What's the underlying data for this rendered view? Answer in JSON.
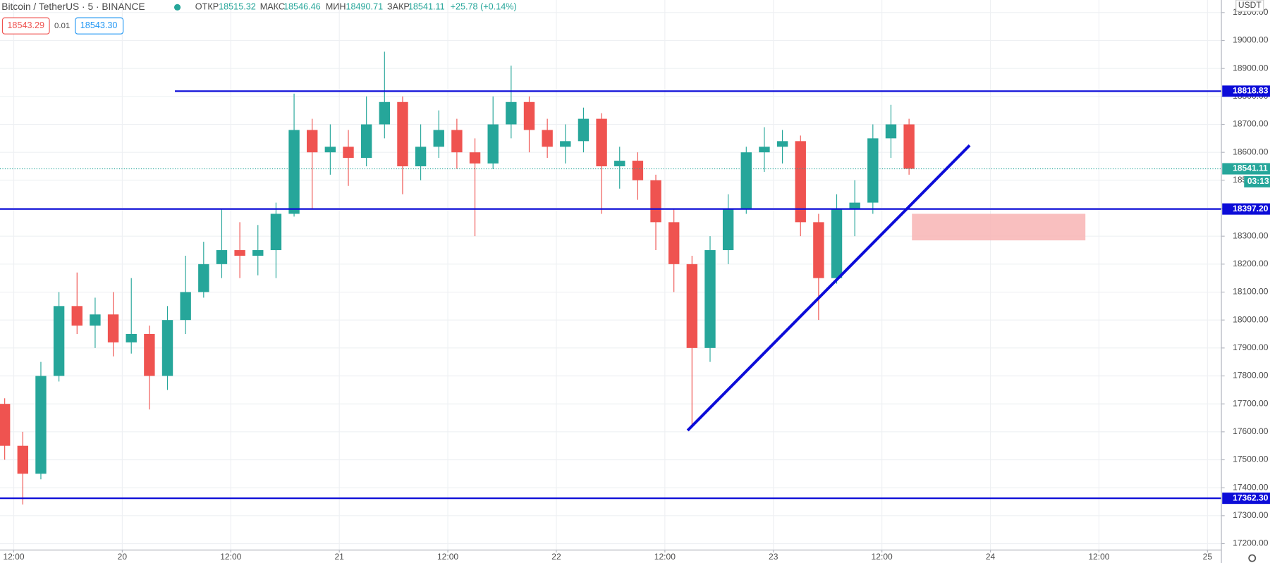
{
  "chart_data": {
    "type": "candlestick",
    "title": "Bitcoin / TetherUS · 5 · BINANCE",
    "header": {
      "open_label": "ОТКР",
      "open": 18515.32,
      "high_label": "МАКС",
      "high": 18546.46,
      "low_label": "МИН",
      "low": 18490.71,
      "close_label": "ЗАКР",
      "close": 18541.11,
      "change": "+25.78 (+0.14%)",
      "sell": "18543.29",
      "spread": "0.01",
      "buy": "18543.30"
    },
    "currency": "USDT",
    "countdown": "03:13",
    "up_color": "#26a69a",
    "down_color": "#ef5350",
    "open": [
      17700,
      17550,
      17450,
      17800,
      18050,
      17980,
      18020,
      17920,
      17950,
      17800,
      18000,
      18100,
      18200,
      18250,
      18230,
      18250,
      18380,
      18680,
      18600,
      18620,
      18580,
      18700,
      18780,
      18550,
      18620,
      18680,
      18600,
      18560,
      18700,
      18780,
      18680,
      18620,
      18640,
      18720,
      18550,
      18570,
      18500,
      18350,
      18200,
      17900,
      18250,
      18400,
      18600,
      18620,
      18640,
      18350,
      18150,
      18400,
      18420,
      18650,
      18700
    ],
    "high": [
      17720,
      17600,
      17850,
      18100,
      18170,
      18080,
      18100,
      18150,
      17980,
      18050,
      18230,
      18280,
      18400,
      18350,
      18340,
      18420,
      18810,
      18720,
      18700,
      18680,
      18800,
      18960,
      18800,
      18700,
      18750,
      18720,
      18650,
      18800,
      18910,
      18800,
      18720,
      18700,
      18760,
      18740,
      18620,
      18600,
      18520,
      18400,
      18230,
      18300,
      18450,
      18620,
      18690,
      18680,
      18660,
      18380,
      18450,
      18500,
      18700,
      18770,
      18720
    ],
    "low": [
      17500,
      17340,
      17430,
      17780,
      17950,
      17900,
      17870,
      17880,
      17680,
      17750,
      17950,
      18080,
      18150,
      18150,
      18160,
      18150,
      18370,
      18400,
      18520,
      18480,
      18550,
      18650,
      18450,
      18500,
      18580,
      18540,
      18300,
      18540,
      18650,
      18600,
      18580,
      18560,
      18600,
      18380,
      18470,
      18430,
      18250,
      18100,
      17620,
      17850,
      18200,
      18380,
      18530,
      18560,
      18300,
      18000,
      18130,
      18300,
      18380,
      18580,
      18520
    ],
    "close": [
      17550,
      17450,
      17800,
      18050,
      17980,
      18020,
      17920,
      17950,
      17800,
      18000,
      18100,
      18200,
      18250,
      18230,
      18250,
      18380,
      18680,
      18600,
      18620,
      18580,
      18700,
      18780,
      18550,
      18620,
      18680,
      18600,
      18560,
      18700,
      18780,
      18680,
      18620,
      18640,
      18720,
      18550,
      18570,
      18500,
      18350,
      18200,
      17900,
      18250,
      18400,
      18600,
      18620,
      18640,
      18350,
      18150,
      18400,
      18420,
      18650,
      18700,
      18541.11
    ],
    "xlim": [
      0.24,
      67.77
    ],
    "ylim": [
      17177,
      19145
    ],
    "xticks": [
      {
        "value": 1,
        "label": "12:00"
      },
      {
        "value": 7,
        "label": "20"
      },
      {
        "value": 13,
        "label": "12:00"
      },
      {
        "value": 19,
        "label": "21"
      },
      {
        "value": 25,
        "label": "12:00"
      },
      {
        "value": 31,
        "label": "22"
      },
      {
        "value": 37,
        "label": "12:00"
      },
      {
        "value": 43,
        "label": "23"
      },
      {
        "value": 49,
        "label": "12:00"
      },
      {
        "value": 55,
        "label": "24"
      },
      {
        "value": 61,
        "label": "12:00"
      },
      {
        "value": 67,
        "label": "25"
      }
    ],
    "yticks": [
      {
        "value": 17200,
        "label": "17200.00"
      },
      {
        "value": 17300,
        "label": "17300.00"
      },
      {
        "value": 17400,
        "label": "17400.00"
      },
      {
        "value": 17500,
        "label": "17500.00"
      },
      {
        "value": 17600,
        "label": "17600.00"
      },
      {
        "value": 17700,
        "label": "17700.00"
      },
      {
        "value": 17800,
        "label": "17800.00"
      },
      {
        "value": 17900,
        "label": "17900.00"
      },
      {
        "value": 18000,
        "label": "18000.00"
      },
      {
        "value": 18100,
        "label": "18100.00"
      },
      {
        "value": 18200,
        "label": "18200.00"
      },
      {
        "value": 18300,
        "label": "18300.00"
      },
      {
        "value": 18400,
        "label": "18400.00"
      },
      {
        "value": 18500,
        "label": "18500.00"
      },
      {
        "value": 18600,
        "label": "18600.00"
      },
      {
        "value": 18700,
        "label": "18700.00"
      },
      {
        "value": 18800,
        "label": "18800.00"
      },
      {
        "value": 18900,
        "label": "18900.00"
      },
      {
        "value": 19000,
        "label": "19000.00"
      },
      {
        "value": 19100,
        "label": "19100.00"
      }
    ],
    "grid": true,
    "levels": [
      {
        "value": 18818.83,
        "label": "18818.83",
        "start": 9.91
      },
      {
        "value": 18397.2,
        "label": "18397.20"
      },
      {
        "value": 17362.3,
        "label": "17362.30"
      }
    ],
    "level_color": "#0c0cd8",
    "trendline": {
      "x": [
        38.26,
        53.85
      ],
      "y": [
        17605,
        18625
      ]
    },
    "zone": {
      "x": [
        50.66,
        60.25
      ],
      "y": [
        18285,
        18380
      ],
      "color": "#f8b4b4"
    }
  }
}
